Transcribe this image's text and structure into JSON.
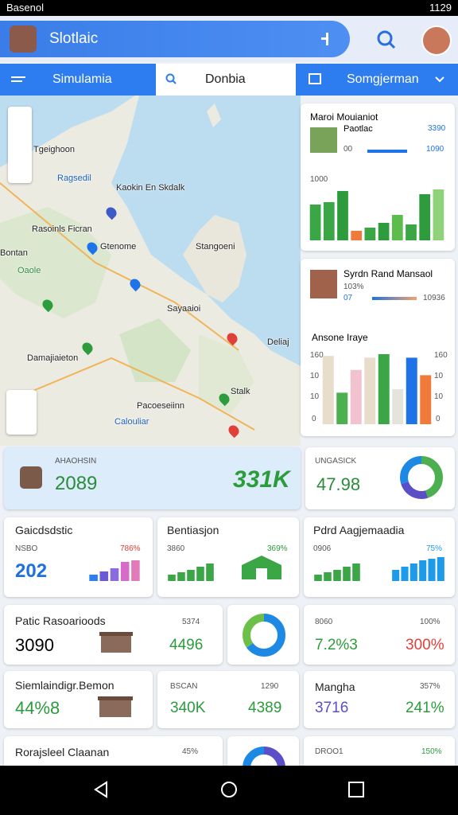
{
  "status_bar": {
    "left": "Basenol",
    "time": "1129"
  },
  "app_bar": {
    "title": "Slotlaic"
  },
  "tabs": [
    "Simulamia",
    "Donbia",
    "Somgjerman"
  ],
  "map": {
    "labels": [
      "Tgeighoon",
      "Ragsedil",
      "Kaokin En Skdalk",
      "Rasoinls Ficran",
      "Gtenome",
      "Stangoeni",
      "Bontan",
      "Oaole",
      "Sayaaioi",
      "Damajiaieton",
      "Deliaj",
      "Pacoeseiinn",
      "Stalk",
      "Calouliar"
    ]
  },
  "panel_1": {
    "title": "Maroi Mouianiot",
    "subtitle": "Paotlac",
    "stat_a": "00",
    "stat_b": "3390",
    "stat_c": "1090",
    "label": "1000",
    "bars": {
      "values": [
        45,
        48,
        62,
        12,
        16,
        22,
        32,
        20,
        58,
        64
      ],
      "colors": [
        "#3aa646",
        "#3aa646",
        "#2e9c3c",
        "#f07a3a",
        "#3aa646",
        "#2e9c3c",
        "#5cbd4c",
        "#3aa646",
        "#2e9c3c",
        "#8fd27a"
      ]
    }
  },
  "panel_2": {
    "title": "Syrdn Rand Mansaol",
    "stat_a": "103%",
    "stat_b": "07",
    "stat_c": "10936",
    "chart_title": "Ansone Iraye",
    "left_ticks": [
      "160",
      "10",
      "10",
      "0"
    ],
    "right_ticks": [
      "160",
      "10",
      "10",
      "0"
    ],
    "bars": {
      "values": [
        78,
        36,
        62,
        76,
        80,
        40,
        76,
        56
      ],
      "colors": [
        "#e8dccb",
        "#4caf50",
        "#f2c3cf",
        "#e8dccb",
        "#3aa646",
        "#e4e4dc",
        "#1e73e8",
        "#f07a3a"
      ]
    }
  },
  "kpi": [
    {
      "label": "AHAOHSIN",
      "value": "2089",
      "change": "331K"
    },
    {
      "label": "UNGASICK",
      "value": "47.98",
      "donut": {
        "values": [
          45,
          25,
          30
        ],
        "colors": [
          "#4caf50",
          "#5b4fc8",
          "#1e88e5"
        ]
      }
    }
  ],
  "cards": [
    {
      "title": "Gaicdsdstic",
      "sub": "NSBO",
      "pct": "786%",
      "value": "202",
      "bars": {
        "values": [
          8,
          12,
          16,
          24,
          26
        ],
        "colors": [
          "#2d7ff0",
          "#6a5ad8",
          "#8a6be0",
          "#d76bc8",
          "#e07ab8"
        ]
      }
    },
    {
      "title": "Bentiasjon",
      "sub": "3860",
      "pct": "369%",
      "bars": {
        "values": [
          8,
          11,
          14,
          18,
          22
        ],
        "colors": [
          "#3aa646",
          "#3aa646",
          "#3aa646",
          "#3aa646",
          "#3aa646"
        ]
      }
    },
    {
      "title": "Pdrd Aagjemaadia",
      "sub": "0906",
      "pct": "75%",
      "bars": {
        "values": [
          8,
          11,
          14,
          18,
          22
        ],
        "colors": [
          "#3aa646",
          "#3aa646",
          "#3aa646",
          "#3aa646",
          "#3aa646"
        ]
      },
      "bars_2": {
        "values": [
          14,
          18,
          22,
          26,
          28,
          30
        ],
        "colors": [
          "#1e9be8",
          "#1e9be8",
          "#1e9be8",
          "#1e9be8",
          "#1e9be8",
          "#1e9be8"
        ]
      }
    }
  ],
  "row_3": {
    "title": "Patic Rasoarioods",
    "value": "3090",
    "pct": "5374",
    "value_2": "4496",
    "donut": {
      "values": [
        65,
        35
      ],
      "colors": [
        "#1e88e5",
        "#6cc04a"
      ]
    },
    "sub": "8060",
    "pct_2": "100%",
    "value_3": "7.2%3",
    "value_4": "300%"
  },
  "row_4": {
    "title": "Siemlaindigr.Bemon",
    "value": "44%8",
    "sub": "BSCAN",
    "pct": "1290",
    "value_2": "340K",
    "value_3": "4389",
    "title_2": "Mangha",
    "pct_2": "357%",
    "value_4": "3716",
    "value_5": "241%"
  },
  "row_5": {
    "title": "Rorajsleel Claanan",
    "pct": "45%",
    "sub": "DROO1",
    "pct_2": "150%",
    "donut": {
      "values": [
        40,
        60
      ],
      "colors": [
        "#5b4fc8",
        "#1e88e5"
      ]
    }
  }
}
